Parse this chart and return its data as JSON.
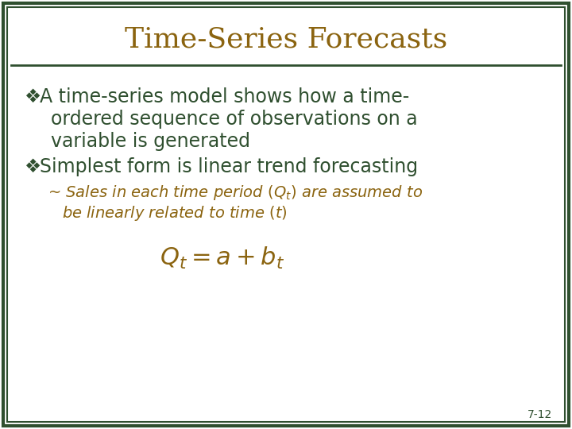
{
  "title": "Time-Series Forecasts",
  "title_color": "#8B6410",
  "title_fontsize": 26,
  "bg_color": "#FFFFFF",
  "outer_border_color": "#2F4F2F",
  "inner_border_color": "#2F4F2F",
  "line_color": "#2F4F2F",
  "bullet_color": "#2F4F2F",
  "bullet_char": "❖",
  "bullet1_text_line1": "A time-series model shows how a time-",
  "bullet1_text_line2": "ordered sequence of observations on a",
  "bullet1_text_line3": "variable is generated",
  "bullet2_text": "Simplest form is linear trend forecasting",
  "main_text_color": "#2F4F2F",
  "sub_text_color": "#8B6410",
  "main_fontsize": 17,
  "sub_fontsize": 14,
  "equation": "$Q_t = a + b_t$",
  "equation_color": "#8B6410",
  "equation_fontsize": 22,
  "page_num": "7-12",
  "page_num_color": "#2F4F2F",
  "page_num_fontsize": 10
}
